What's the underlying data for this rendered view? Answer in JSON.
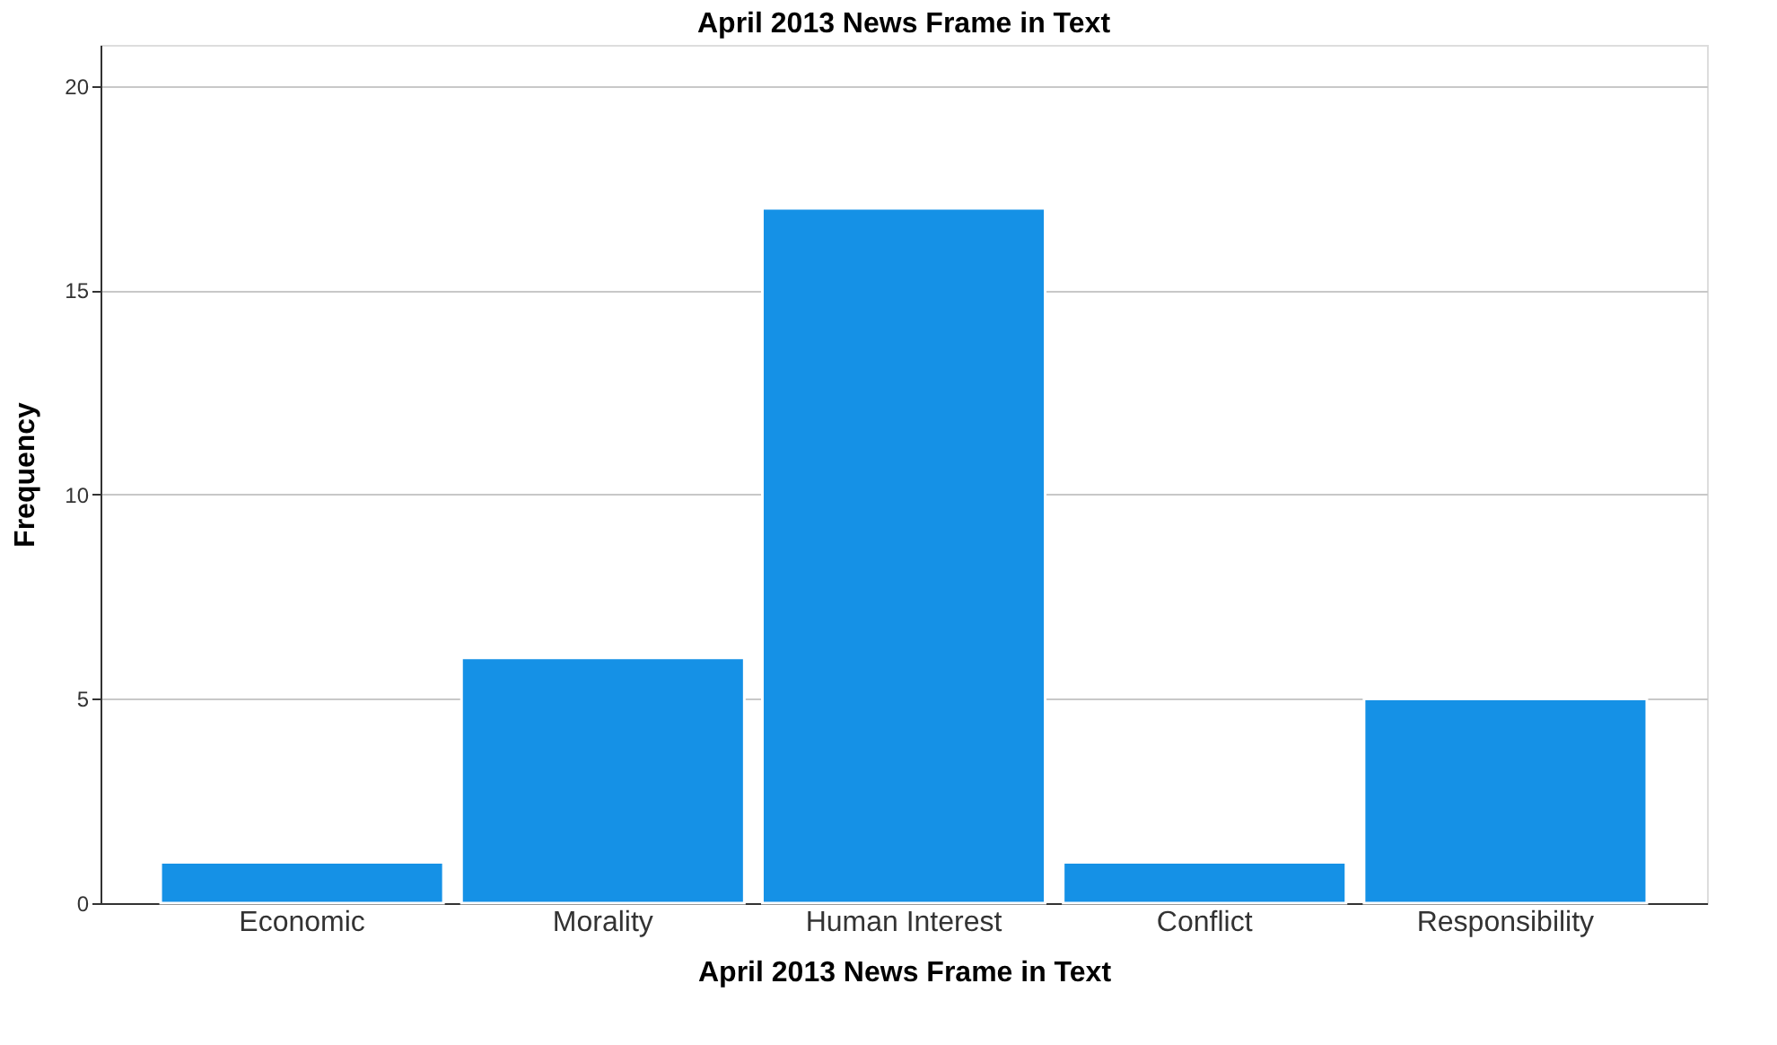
{
  "chart_data": {
    "type": "bar",
    "title": "April 2013 News Frame in Text",
    "xlabel": "April 2013 News Frame in Text",
    "ylabel": "Frequency",
    "categories": [
      "Economic",
      "Morality",
      "Human Interest",
      "Conflict",
      "Responsibility"
    ],
    "values": [
      1,
      6,
      17,
      1,
      5
    ],
    "color": "#1591e6",
    "ylim": [
      0,
      21
    ],
    "yticks": [
      0,
      5,
      10,
      15,
      20
    ],
    "grid": "y"
  }
}
